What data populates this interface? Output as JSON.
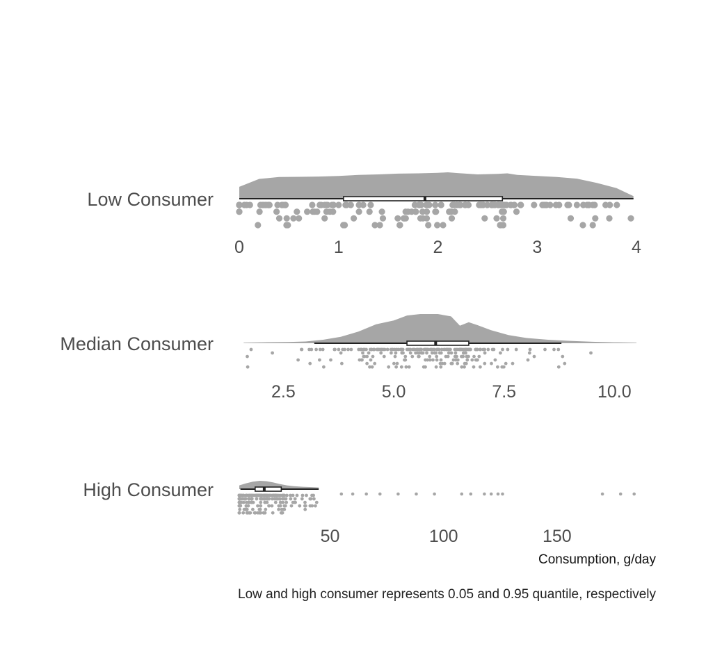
{
  "chart_data": {
    "type": "raincloud",
    "xlabel": "Consumption, g/day",
    "caption": "Low and high consumer represents 0.05 and 0.95 quantile, respectively",
    "colors": {
      "cloud": "#a6a6a6",
      "rain": "#a6a6a6",
      "box": "#222222"
    },
    "panels": [
      {
        "label": "Low Consumer",
        "xlim": [
          0,
          4
        ],
        "ticks": [
          0,
          1,
          2,
          3,
          4
        ],
        "tick_labels": [
          "0",
          "1",
          "2",
          "3",
          "4"
        ],
        "box": {
          "whisker_low": 0.0,
          "q1": 1.05,
          "median": 1.87,
          "q3": 2.65,
          "whisker_high": 3.97
        },
        "density": {
          "x": [
            0.0,
            0.2,
            0.4,
            0.6,
            0.8,
            1.0,
            1.2,
            1.4,
            1.6,
            1.8,
            2.0,
            2.1,
            2.2,
            2.4,
            2.6,
            2.7,
            2.8,
            3.0,
            3.2,
            3.4,
            3.6,
            3.8,
            3.97
          ],
          "y": [
            0.45,
            0.75,
            0.82,
            0.83,
            0.84,
            0.86,
            0.9,
            0.92,
            0.95,
            0.96,
            0.98,
            1.0,
            0.97,
            0.92,
            0.94,
            0.96,
            0.9,
            0.86,
            0.82,
            0.76,
            0.6,
            0.4,
            0.1
          ]
        }
      },
      {
        "label": "Median Consumer",
        "xlim": [
          1.5,
          10.5
        ],
        "ticks": [
          2.5,
          5.0,
          7.5,
          10.0
        ],
        "tick_labels": [
          "2.5",
          "5.0",
          "7.5",
          "10.0"
        ],
        "box": {
          "whisker_low": 3.2,
          "q1": 5.3,
          "median": 5.95,
          "q3": 6.7,
          "whisker_high": 8.8
        },
        "density": {
          "x": [
            1.6,
            2.0,
            2.6,
            3.0,
            3.4,
            3.8,
            4.2,
            4.6,
            5.0,
            5.3,
            5.6,
            6.0,
            6.3,
            6.5,
            6.7,
            6.9,
            7.2,
            7.6,
            8.0,
            8.5,
            9.0,
            9.5,
            10.0,
            10.5
          ],
          "y": [
            0.02,
            0.03,
            0.04,
            0.06,
            0.12,
            0.22,
            0.4,
            0.65,
            0.78,
            0.95,
            1.0,
            1.0,
            0.92,
            0.6,
            0.72,
            0.62,
            0.45,
            0.28,
            0.18,
            0.12,
            0.08,
            0.05,
            0.03,
            0.02
          ]
        }
      },
      {
        "label": "High Consumer",
        "xlim": [
          10,
          185
        ],
        "ticks": [
          50,
          100,
          150
        ],
        "tick_labels": [
          "50",
          "100",
          "150"
        ],
        "box": {
          "whisker_low": 10.5,
          "q1": 17,
          "median": 21,
          "q3": 28.5,
          "whisker_high": 45
        },
        "density": {
          "x": [
            10,
            13,
            16,
            19,
            22,
            25,
            28,
            31,
            34,
            38,
            42,
            45
          ],
          "y": [
            0.45,
            0.7,
            0.9,
            1.0,
            0.95,
            0.8,
            0.6,
            0.45,
            0.35,
            0.28,
            0.24,
            0.2
          ]
        }
      }
    ]
  }
}
